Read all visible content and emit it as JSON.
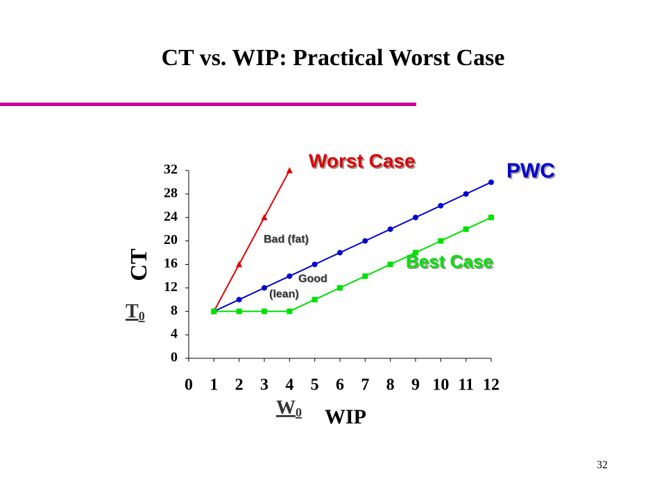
{
  "chart_data": {
    "type": "line",
    "title": "CT vs. WIP: Practical Worst Case",
    "x_label": "WIP",
    "y_label": "CT",
    "x": [
      1,
      2,
      3,
      4,
      5,
      6,
      7,
      8,
      9,
      10,
      11,
      12
    ],
    "series": [
      {
        "name": "Worst Case",
        "color": "#e00000",
        "marker": "triangle",
        "values": [
          8,
          16,
          24,
          32,
          null,
          null,
          null,
          null,
          null,
          null,
          null,
          null
        ]
      },
      {
        "name": "PWC",
        "color": "#0000d0",
        "marker": "circle",
        "values": [
          8,
          10,
          12,
          14,
          16,
          18,
          20,
          22,
          24,
          26,
          28,
          30
        ]
      },
      {
        "name": "Best Case",
        "color": "#00e000",
        "marker": "square",
        "values": [
          8,
          8,
          8,
          8,
          10,
          12,
          14,
          16,
          18,
          20,
          22,
          24
        ]
      }
    ],
    "xlim": [
      0,
      12
    ],
    "xticks": [
      0,
      1,
      2,
      3,
      4,
      5,
      6,
      7,
      8,
      9,
      10,
      11,
      12
    ],
    "ylim": [
      0,
      32
    ],
    "yticks": [
      0,
      4,
      8,
      12,
      16,
      20,
      24,
      28,
      32
    ],
    "annotations": [
      "Bad (fat)",
      "Good",
      "(lean)"
    ],
    "t0_label": {
      "main": "T",
      "sub": "0"
    },
    "w0_label": {
      "main": "W",
      "sub": "0"
    }
  },
  "page_number": "32"
}
